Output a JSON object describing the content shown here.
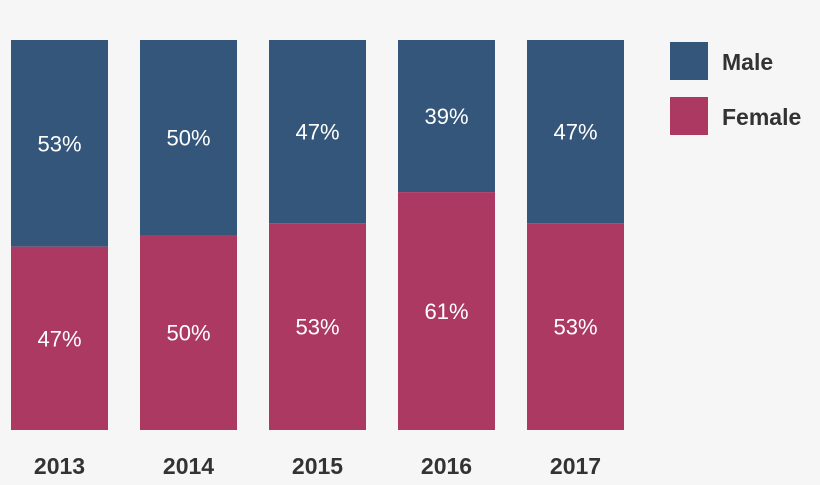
{
  "chart_data": {
    "type": "bar",
    "stacked": true,
    "percent": true,
    "categories": [
      "2013",
      "2014",
      "2015",
      "2016",
      "2017"
    ],
    "series": [
      {
        "name": "Male",
        "color": "#34567a",
        "values": [
          53,
          50,
          47,
          39,
          47
        ],
        "labels": [
          "53%",
          "50%",
          "47%",
          "39%",
          "47%"
        ]
      },
      {
        "name": "Female",
        "color": "#ab3962",
        "values": [
          47,
          50,
          53,
          61,
          53
        ],
        "labels": [
          "47%",
          "50%",
          "53%",
          "61%",
          "53%"
        ]
      }
    ],
    "ylim": [
      0,
      100
    ],
    "grid": false,
    "legend_position": "top-right"
  }
}
